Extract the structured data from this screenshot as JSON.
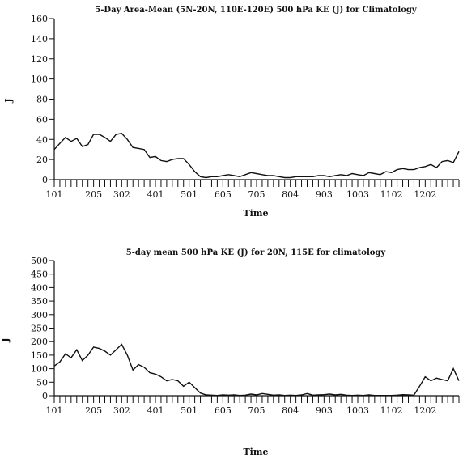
{
  "chart_data": [
    {
      "type": "line",
      "title": "5-Day Area-Mean (5N-20N, 110E-120E) 500 hPa KE (J) for Climatology",
      "xlabel": "Time",
      "ylabel": "J",
      "ylim": [
        0,
        160
      ],
      "yticks": [
        0,
        20,
        40,
        60,
        80,
        100,
        120,
        140,
        160
      ],
      "xlim": [
        1,
        73
      ],
      "xtick_labels": [
        {
          "pos": 1,
          "label": "101"
        },
        {
          "pos": 8,
          "label": "205"
        },
        {
          "pos": 13,
          "label": "302"
        },
        {
          "pos": 19,
          "label": "401"
        },
        {
          "pos": 25,
          "label": "501"
        },
        {
          "pos": 31,
          "label": "605"
        },
        {
          "pos": 37,
          "label": "705"
        },
        {
          "pos": 43,
          "label": "804"
        },
        {
          "pos": 49,
          "label": "903"
        },
        {
          "pos": 55,
          "label": "1003"
        },
        {
          "pos": 61,
          "label": "1102"
        },
        {
          "pos": 67,
          "label": "1202"
        }
      ],
      "x": [
        1,
        2,
        3,
        4,
        5,
        6,
        7,
        8,
        9,
        10,
        11,
        12,
        13,
        14,
        15,
        16,
        17,
        18,
        19,
        20,
        21,
        22,
        23,
        24,
        25,
        26,
        27,
        28,
        29,
        30,
        31,
        32,
        33,
        34,
        35,
        36,
        37,
        38,
        39,
        40,
        41,
        42,
        43,
        44,
        45,
        46,
        47,
        48,
        49,
        50,
        51,
        52,
        53,
        54,
        55,
        56,
        57,
        58,
        59,
        60,
        61,
        62,
        63,
        64,
        65,
        66,
        67,
        68,
        69,
        70,
        71,
        72,
        73
      ],
      "series": [
        {
          "values": [
            30,
            36,
            42,
            38,
            41,
            33,
            35,
            45,
            45,
            42,
            38,
            45,
            46,
            40,
            32,
            31,
            30,
            22,
            23,
            19,
            18,
            20,
            21,
            21,
            15,
            8,
            3,
            2,
            3,
            3,
            4,
            5,
            4,
            3,
            5,
            7,
            6,
            5,
            4,
            4,
            3,
            2,
            2,
            3,
            3,
            3,
            3,
            4,
            4,
            3,
            4,
            5,
            4,
            6,
            5,
            4,
            7,
            6,
            5,
            8,
            7,
            10,
            11,
            10,
            10,
            12,
            13,
            15,
            12,
            18,
            19,
            17,
            28
          ]
        }
      ]
    },
    {
      "type": "line",
      "title": "5-day mean 500 hPa KE (J) for 20N, 115E for climatology",
      "xlabel": "Time",
      "ylabel": "J",
      "ylim": [
        0,
        500
      ],
      "yticks": [
        0,
        50,
        100,
        150,
        200,
        250,
        300,
        350,
        400,
        450,
        500
      ],
      "xlim": [
        1,
        73
      ],
      "xtick_labels": [
        {
          "pos": 1,
          "label": "101"
        },
        {
          "pos": 8,
          "label": "205"
        },
        {
          "pos": 13,
          "label": "302"
        },
        {
          "pos": 19,
          "label": "401"
        },
        {
          "pos": 25,
          "label": "501"
        },
        {
          "pos": 31,
          "label": "605"
        },
        {
          "pos": 37,
          "label": "705"
        },
        {
          "pos": 43,
          "label": "804"
        },
        {
          "pos": 49,
          "label": "903"
        },
        {
          "pos": 55,
          "label": "1003"
        },
        {
          "pos": 61,
          "label": "1102"
        },
        {
          "pos": 67,
          "label": "1202"
        }
      ],
      "x": [
        1,
        2,
        3,
        4,
        5,
        6,
        7,
        8,
        9,
        10,
        11,
        12,
        13,
        14,
        15,
        16,
        17,
        18,
        19,
        20,
        21,
        22,
        23,
        24,
        25,
        26,
        27,
        28,
        29,
        30,
        31,
        32,
        33,
        34,
        35,
        36,
        37,
        38,
        39,
        40,
        41,
        42,
        43,
        44,
        45,
        46,
        47,
        48,
        49,
        50,
        51,
        52,
        53,
        54,
        55,
        56,
        57,
        58,
        59,
        60,
        61,
        62,
        63,
        64,
        65,
        66,
        67,
        68,
        69,
        70,
        71,
        72,
        73
      ],
      "series": [
        {
          "values": [
            110,
            125,
            155,
            140,
            170,
            130,
            150,
            180,
            175,
            165,
            150,
            170,
            190,
            150,
            95,
            115,
            105,
            85,
            80,
            70,
            55,
            60,
            55,
            35,
            50,
            30,
            10,
            3,
            2,
            1,
            3,
            2,
            3,
            1,
            2,
            6,
            3,
            8,
            5,
            2,
            3,
            1,
            2,
            1,
            3,
            8,
            2,
            3,
            4,
            6,
            3,
            5,
            2,
            1,
            2,
            1,
            3,
            1,
            1,
            1,
            1,
            2,
            4,
            3,
            2,
            35,
            70,
            55,
            65,
            60,
            55,
            100,
            55
          ]
        }
      ]
    }
  ]
}
